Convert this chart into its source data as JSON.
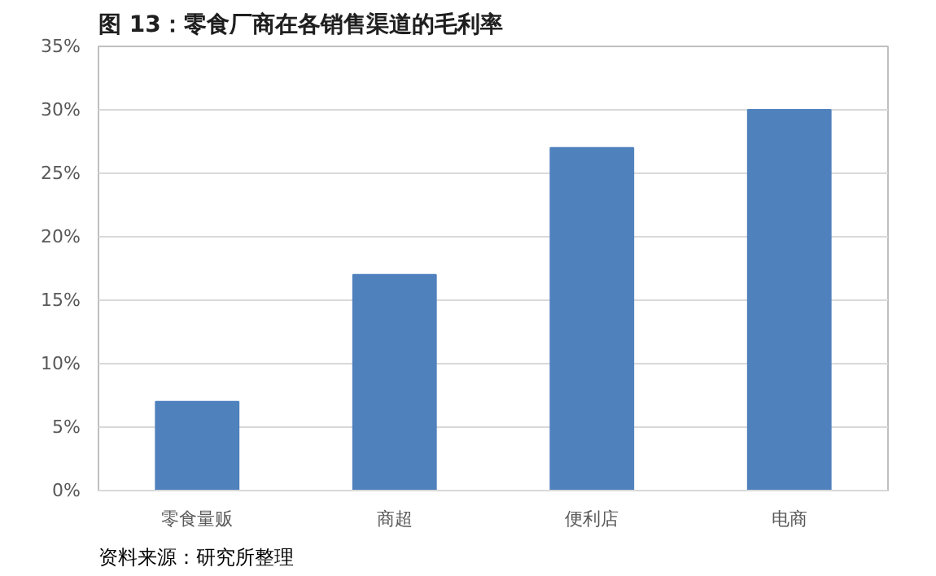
{
  "chart_data": {
    "type": "bar",
    "title": "图 13：零食厂商在各销售渠道的毛利率",
    "categories": [
      "零食量贩",
      "商超",
      "便利店",
      "电商"
    ],
    "values": [
      7,
      17,
      27,
      30
    ],
    "color": "#4f81bd",
    "ylim": [
      0,
      35
    ],
    "yticks": [
      {
        "value": 0,
        "label": "0%"
      },
      {
        "value": 5,
        "label": "5%"
      },
      {
        "value": 10,
        "label": "10%"
      },
      {
        "value": 15,
        "label": "15%"
      },
      {
        "value": 20,
        "label": "20%"
      },
      {
        "value": 25,
        "label": "25%"
      },
      {
        "value": 30,
        "label": "30%"
      },
      {
        "value": 35,
        "label": "35%"
      }
    ],
    "grid": "y",
    "annotations": [
      "资料来源：研究所整理"
    ]
  }
}
